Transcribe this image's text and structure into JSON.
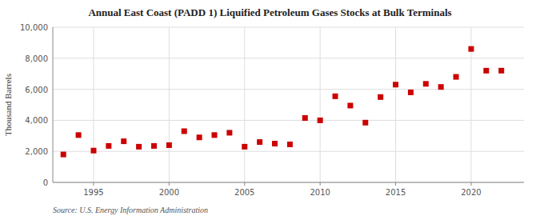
{
  "chart_data": {
    "type": "scatter",
    "title": "Annual East Coast (PADD 1) Liquified Petroleum Gases Stocks at Bulk Terminals",
    "y_label": "Thousand Barrels",
    "source": "Source: U.S. Energy Information Administration",
    "color": "#cc0000",
    "marker": "square",
    "grid": true,
    "xlim": [
      1992.3,
      2023.5
    ],
    "xticks": [
      1995,
      2000,
      2005,
      2010,
      2015,
      2020
    ],
    "ylim": [
      0,
      10000
    ],
    "yticks": [
      0,
      {
        "value": 2000,
        "label": "2,000"
      },
      {
        "value": 4000,
        "label": "4,000"
      },
      {
        "value": 6000,
        "label": "6,000"
      },
      {
        "value": 8000,
        "label": "8,000"
      },
      {
        "value": 10000,
        "label": "10,000"
      }
    ],
    "x": [
      1993,
      1994,
      1995,
      1996,
      1997,
      1998,
      1999,
      2000,
      2001,
      2002,
      2003,
      2004,
      2005,
      2006,
      2007,
      2008,
      2009,
      2010,
      2011,
      2012,
      2013,
      2014,
      2015,
      2016,
      2017,
      2018,
      2019,
      2020,
      2021,
      2022
    ],
    "values": [
      1800,
      3050,
      2050,
      2350,
      2650,
      2300,
      2350,
      2400,
      3300,
      2900,
      3050,
      3200,
      2300,
      2600,
      2500,
      2450,
      4150,
      4000,
      5550,
      4950,
      3850,
      5500,
      6300,
      5800,
      6350,
      6150,
      6800,
      8600,
      7200,
      7200
    ]
  }
}
